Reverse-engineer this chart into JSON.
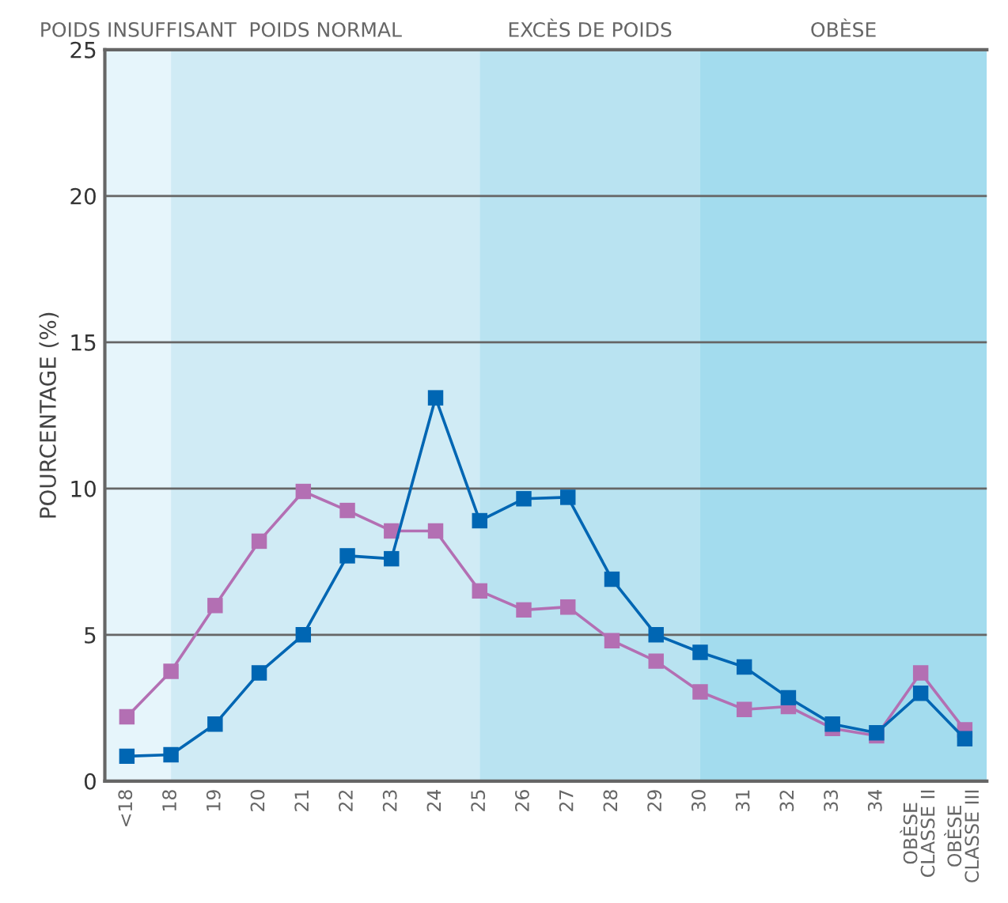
{
  "chart_data": {
    "type": "line",
    "ylabel": "POURCENTAGE (%)",
    "categories": [
      "<18",
      "18",
      "19",
      "20",
      "21",
      "22",
      "23",
      "24",
      "25",
      "26",
      "27",
      "28",
      "29",
      "30",
      "31",
      "32",
      "33",
      "34",
      "OBÈSE\nCLASSE II",
      "OBÈSE\nCLASSE III"
    ],
    "series": [
      {
        "color": "#b36fb3",
        "values": [
          2.2,
          3.75,
          6.0,
          8.2,
          9.9,
          9.25,
          8.55,
          8.55,
          6.5,
          5.85,
          5.95,
          4.8,
          4.1,
          3.05,
          2.45,
          2.55,
          1.8,
          1.55,
          3.7,
          1.75
        ]
      },
      {
        "color": "#0066b3",
        "values": [
          0.85,
          0.9,
          1.95,
          3.7,
          5.0,
          7.7,
          7.6,
          13.1,
          8.9,
          9.65,
          9.7,
          6.9,
          5.0,
          4.4,
          3.9,
          2.85,
          1.95,
          1.65,
          3.0,
          1.45
        ]
      }
    ],
    "ylim": [
      0,
      25
    ],
    "yticks": [
      0,
      5,
      10,
      15,
      20,
      25
    ],
    "grid": "y",
    "marker": "square",
    "line_style": "solid",
    "bands": [
      {
        "axis": "x",
        "from": "<18",
        "to": "18",
        "label": "POIDS INSUFFISANT",
        "color": "#e6f5fb"
      },
      {
        "axis": "x",
        "from": "18",
        "to": "25",
        "label": "POIDS NORMAL",
        "color": "#d0ebf5"
      },
      {
        "axis": "x",
        "from": "25",
        "to": "30",
        "label": "EXCÈS DE POIDS",
        "color": "#b9e3f1"
      },
      {
        "axis": "x",
        "from": "30",
        "to": "OBÈSE\nCLASSE III",
        "label": "OBÈSE",
        "color": "#a3dcee"
      }
    ]
  }
}
